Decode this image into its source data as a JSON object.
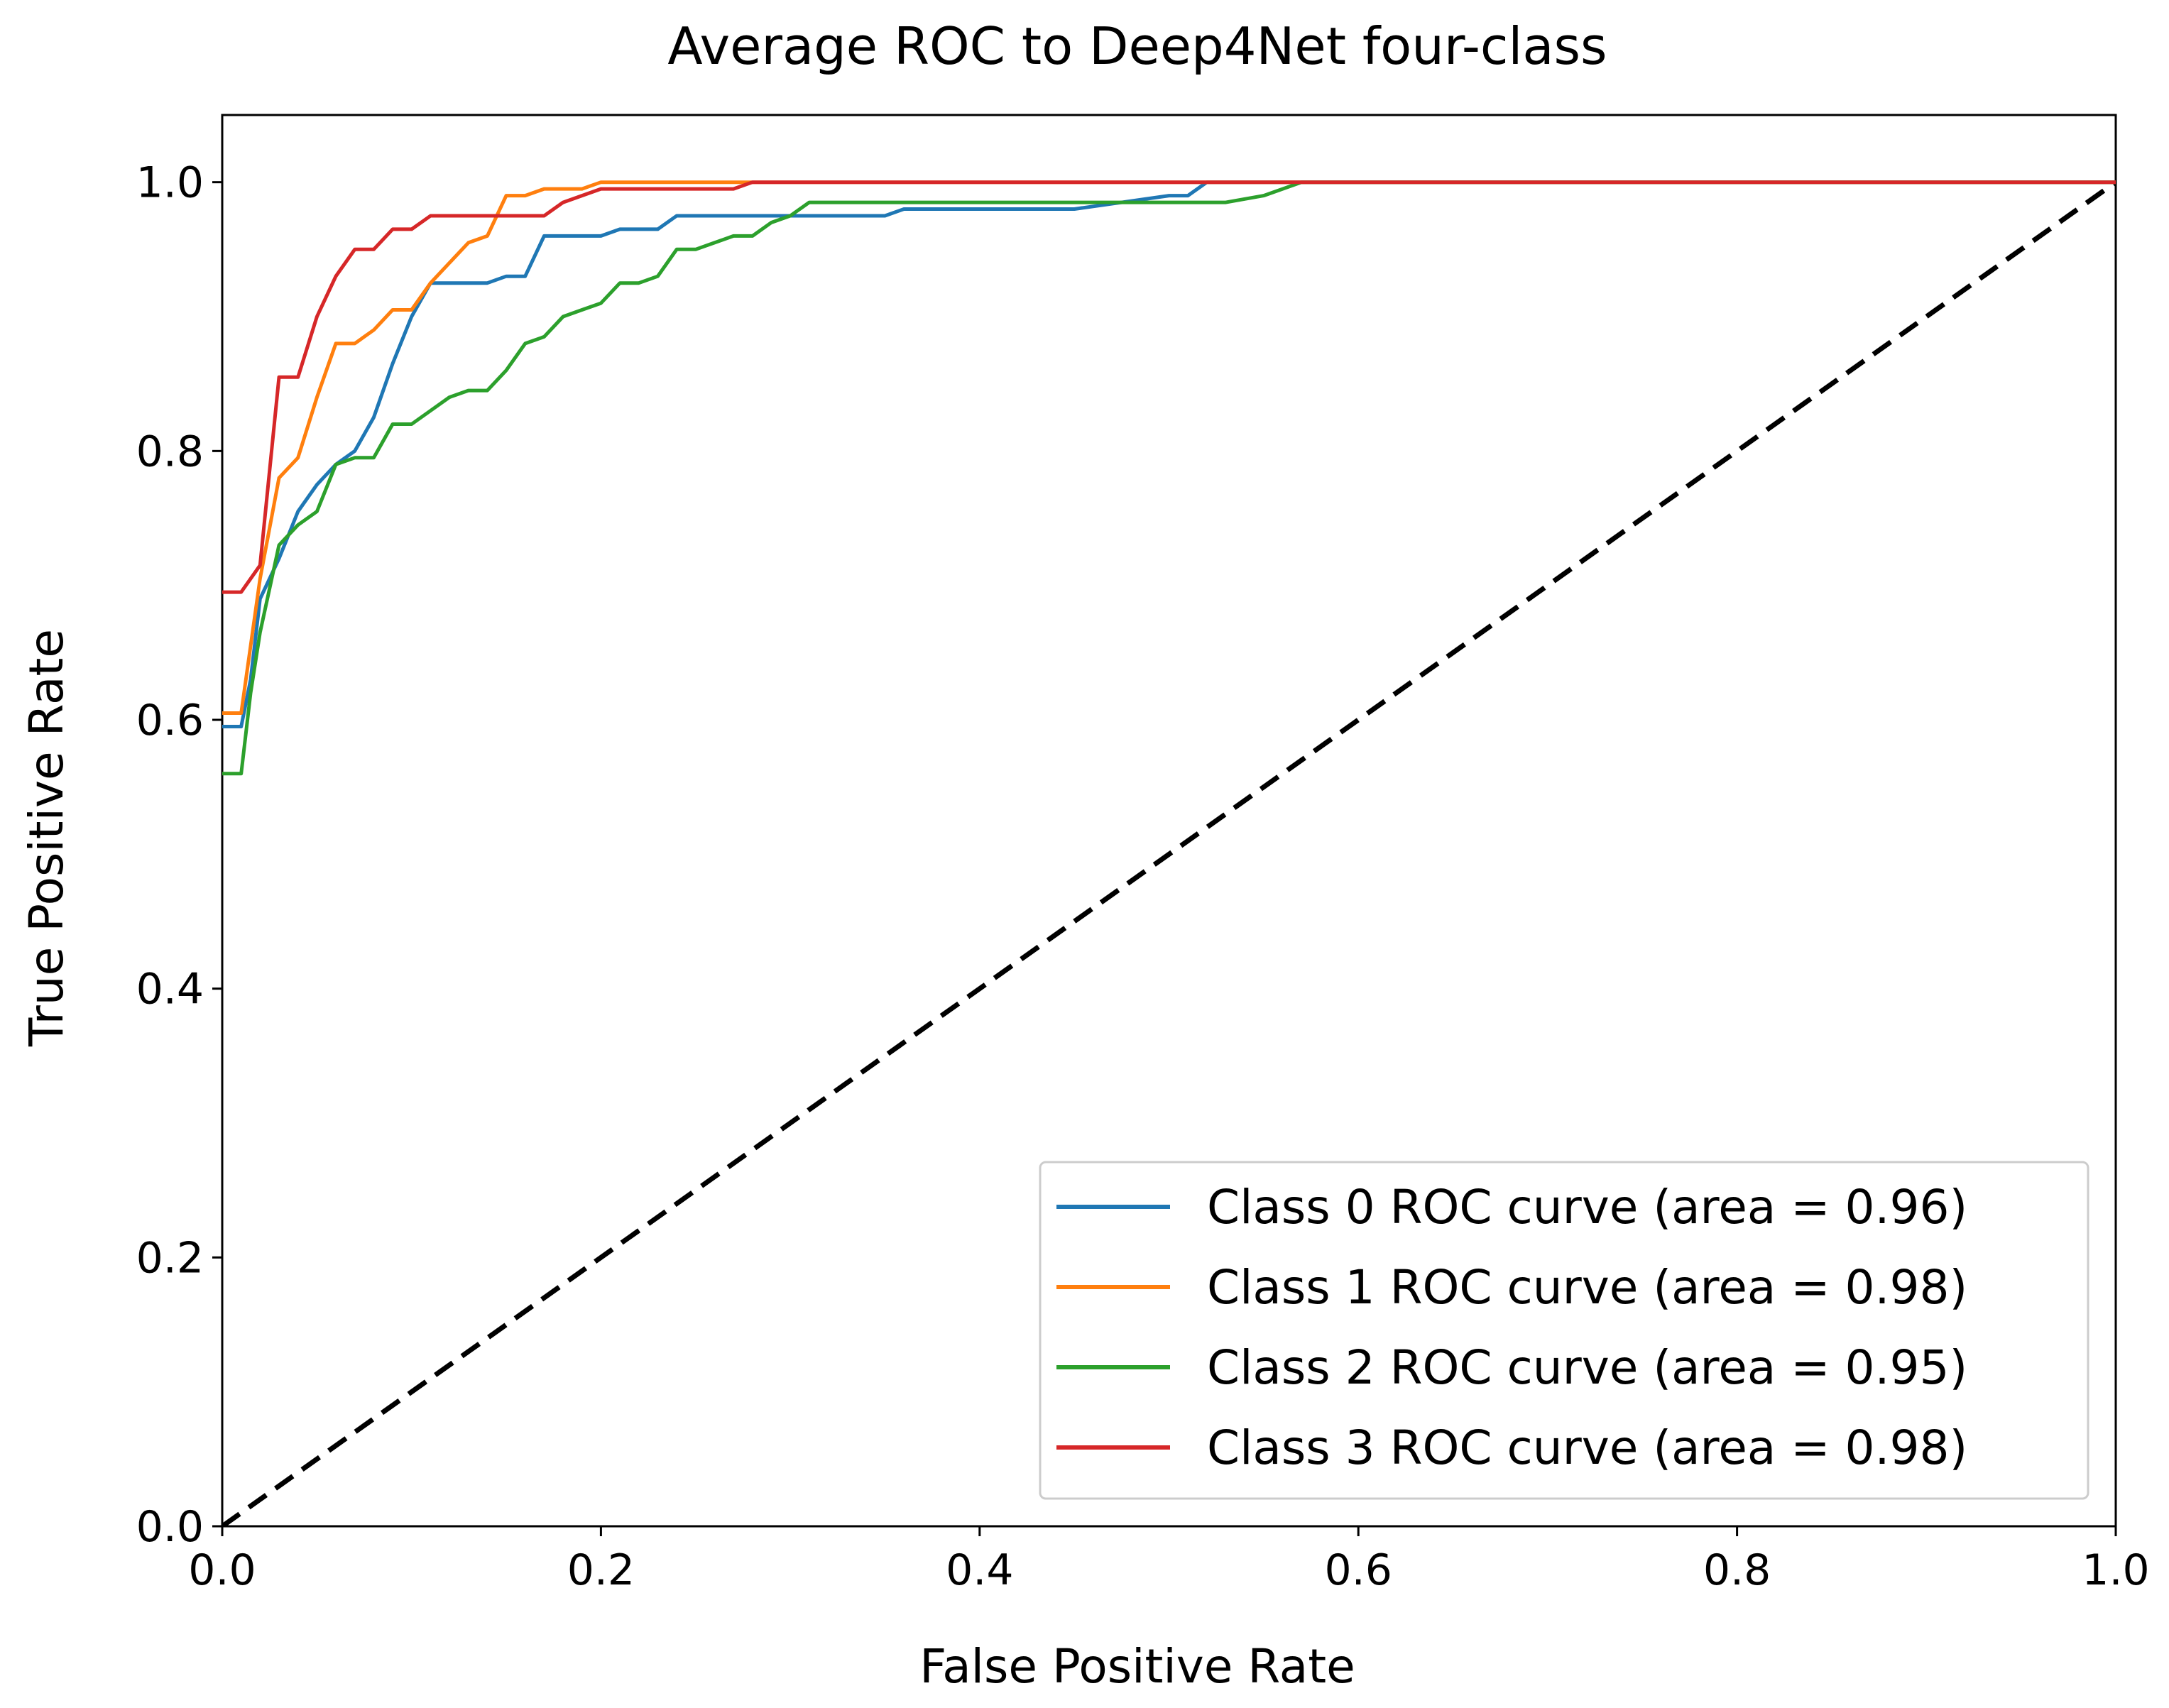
{
  "chart_data": {
    "type": "line",
    "title": "Average ROC to Deep4Net four-class",
    "xlabel": "False Positive Rate",
    "ylabel": "True Positive Rate",
    "xlim": [
      0.0,
      1.0
    ],
    "ylim": [
      0.0,
      1.05
    ],
    "x_ticks": [
      0.0,
      0.2,
      0.4,
      0.6,
      0.8,
      1.0
    ],
    "x_tick_labels": [
      "0.0",
      "0.2",
      "0.4",
      "0.6",
      "0.8",
      "1.0"
    ],
    "y_ticks": [
      0.0,
      0.2,
      0.4,
      0.6,
      0.8,
      1.0
    ],
    "y_tick_labels": [
      "0.0",
      "0.2",
      "0.4",
      "0.6",
      "0.8",
      "1.0"
    ],
    "grid": false,
    "legend_position": "lower-right",
    "series": [
      {
        "name": "Class 0 ROC curve (area = 0.96)",
        "color": "#1f77b4",
        "x": [
          0.0,
          0.01,
          0.015,
          0.02,
          0.03,
          0.04,
          0.05,
          0.06,
          0.07,
          0.08,
          0.09,
          0.1,
          0.11,
          0.12,
          0.13,
          0.14,
          0.15,
          0.16,
          0.17,
          0.18,
          0.19,
          0.2,
          0.21,
          0.22,
          0.23,
          0.24,
          0.25,
          0.3,
          0.32,
          0.35,
          0.36,
          0.45,
          0.5,
          0.51,
          0.52,
          0.6,
          1.0
        ],
        "y": [
          0.595,
          0.595,
          0.63,
          0.69,
          0.72,
          0.755,
          0.775,
          0.79,
          0.8,
          0.825,
          0.865,
          0.9,
          0.925,
          0.925,
          0.925,
          0.925,
          0.93,
          0.93,
          0.96,
          0.96,
          0.96,
          0.96,
          0.965,
          0.965,
          0.965,
          0.975,
          0.975,
          0.975,
          0.975,
          0.975,
          0.98,
          0.98,
          0.99,
          0.99,
          1.0,
          1.0,
          1.0
        ]
      },
      {
        "name": "Class 1 ROC curve (area = 0.98)",
        "color": "#ff7f0e",
        "x": [
          0.0,
          0.01,
          0.02,
          0.03,
          0.04,
          0.05,
          0.06,
          0.07,
          0.08,
          0.09,
          0.1,
          0.11,
          0.12,
          0.13,
          0.14,
          0.15,
          0.16,
          0.17,
          0.18,
          0.19,
          0.2,
          0.21,
          0.25,
          0.3,
          1.0
        ],
        "y": [
          0.605,
          0.605,
          0.705,
          0.78,
          0.795,
          0.84,
          0.88,
          0.88,
          0.89,
          0.905,
          0.905,
          0.925,
          0.94,
          0.955,
          0.96,
          0.99,
          0.99,
          0.995,
          0.995,
          0.995,
          1.0,
          1.0,
          1.0,
          1.0,
          1.0
        ]
      },
      {
        "name": "Class 2 ROC curve (area = 0.95)",
        "color": "#2ca02c",
        "x": [
          0.0,
          0.01,
          0.015,
          0.02,
          0.03,
          0.04,
          0.05,
          0.06,
          0.07,
          0.08,
          0.09,
          0.1,
          0.11,
          0.12,
          0.13,
          0.14,
          0.15,
          0.16,
          0.17,
          0.18,
          0.19,
          0.2,
          0.21,
          0.22,
          0.23,
          0.24,
          0.25,
          0.26,
          0.27,
          0.28,
          0.29,
          0.3,
          0.31,
          0.35,
          0.4,
          0.5,
          0.53,
          0.55,
          0.57,
          0.6,
          1.0
        ],
        "y": [
          0.56,
          0.56,
          0.62,
          0.665,
          0.73,
          0.745,
          0.755,
          0.79,
          0.795,
          0.795,
          0.82,
          0.82,
          0.83,
          0.84,
          0.845,
          0.845,
          0.86,
          0.88,
          0.885,
          0.9,
          0.905,
          0.91,
          0.925,
          0.925,
          0.93,
          0.95,
          0.95,
          0.955,
          0.96,
          0.96,
          0.97,
          0.975,
          0.985,
          0.985,
          0.985,
          0.985,
          0.985,
          0.99,
          1.0,
          1.0,
          1.0
        ]
      },
      {
        "name": "Class 3 ROC curve (area = 0.98)",
        "color": "#d62728",
        "x": [
          0.0,
          0.01,
          0.02,
          0.03,
          0.04,
          0.05,
          0.06,
          0.07,
          0.08,
          0.09,
          0.1,
          0.11,
          0.12,
          0.15,
          0.17,
          0.18,
          0.19,
          0.2,
          0.22,
          0.25,
          0.27,
          0.28,
          0.3,
          1.0
        ],
        "y": [
          0.695,
          0.695,
          0.715,
          0.855,
          0.855,
          0.9,
          0.93,
          0.95,
          0.95,
          0.965,
          0.965,
          0.975,
          0.975,
          0.975,
          0.975,
          0.985,
          0.99,
          0.995,
          0.995,
          0.995,
          0.995,
          1.0,
          1.0,
          1.0
        ]
      }
    ],
    "reference_line": {
      "name": "chance",
      "color": "#000000",
      "style": "dashed",
      "x": [
        0.0,
        1.0
      ],
      "y": [
        0.0,
        1.0
      ]
    }
  }
}
